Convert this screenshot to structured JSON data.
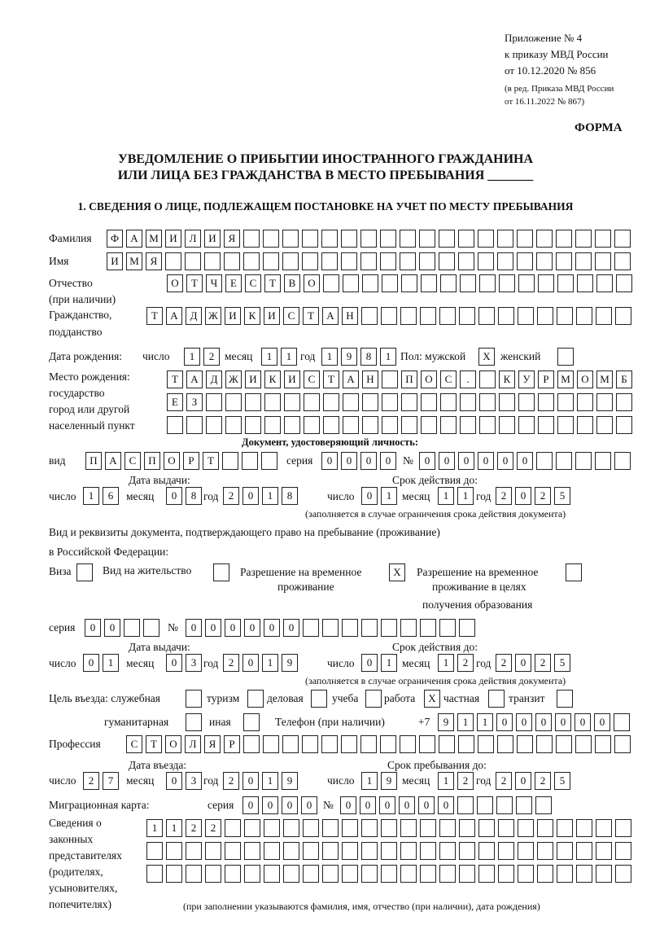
{
  "header": {
    "appendix": "Приложение № 4",
    "order": "к приказу МВД России",
    "order_date": "от 10.12.2020 № 856",
    "edition1": "(в ред. Приказа МВД России",
    "edition2": "от 16.11.2022 № 867)",
    "form_label": "ФОРМА"
  },
  "title": {
    "line1": "УВЕДОМЛЕНИЕ О ПРИБЫТИИ ИНОСТРАННОГО ГРАЖДАНИНА",
    "line2": "ИЛИ ЛИЦА БЕЗ ГРАЖДАНСТВА В МЕСТО ПРЕБЫВАНИЯ _______"
  },
  "section1": "1. СВЕДЕНИЯ О ЛИЦЕ, ПОДЛЕЖАЩЕМ ПОСТАНОВКЕ НА УЧЕТ ПО МЕСТУ ПРЕБЫВАНИЯ",
  "labels": {
    "surname": "Фамилия",
    "name": "Имя",
    "patronymic": "Отчество",
    "patronymic_note": "(при наличии)",
    "citizenship1": "Гражданство,",
    "citizenship2": "подданство",
    "birth_date": "Дата рождения:",
    "day": "число",
    "month": "месяц",
    "year": "год",
    "sex_male": "Пол: мужской",
    "sex_female": "женский",
    "birthplace1": "Место рождения:",
    "birthplace2": "государство",
    "birthplace3": "город или другой",
    "birthplace4": "населенный пункт",
    "id_doc": "Документ, удостоверяющий личность:",
    "type": "вид",
    "series": "серия",
    "number": "№",
    "issue_date": "Дата выдачи:",
    "valid_until": "Срок действия до:",
    "validity_note": "(заполняется в случае ограничения срока действия документа)",
    "stay_doc1": "Вид и реквизиты документа, подтверждающего право на пребывание (проживание)",
    "stay_doc2": "в Российской Федерации:",
    "visa": "Виза",
    "residence": "Вид на жительство",
    "trp1": "Разрешение на временное",
    "trp2": "проживание",
    "trp_edu1": "Разрешение на временное",
    "trp_edu2": "проживание в целях",
    "trp_edu3": "получения образования",
    "purpose": "Цель въезда: служебная",
    "tourism": "туризм",
    "business": "деловая",
    "study": "учеба",
    "work": "работа",
    "private": "частная",
    "transit": "транзит",
    "humanitarian": "гуманитарная",
    "other": "иная",
    "phone": "Телефон (при наличии)",
    "phone_prefix": "+7",
    "profession": "Профессия",
    "entry_date": "Дата въезда:",
    "stay_until": "Срок пребывания до:",
    "migration_card": "Миграционная карта:",
    "legal1": "Сведения о",
    "legal2": "законных",
    "legal3": "представителях",
    "legal4": "(родителях,",
    "legal5": "усыновителях,",
    "legal6": "попечителях)",
    "legal_note": "(при заполнении указываются фамилия, имя, отчество (при наличии), дата рождения)"
  },
  "values": {
    "surname": "ФАМИЛИЯ",
    "name": "ИМЯ",
    "patronymic": "ОТЧЕСТВО",
    "citizenship": "ТАДЖИКИСТАН",
    "birth": {
      "day": "12",
      "month": "11",
      "year": "1981"
    },
    "sex": {
      "male": "X",
      "female": ""
    },
    "birthplace": [
      "ТАДЖИКИСТАН ПОС. КУРМОМБ",
      "ЕЗ",
      ""
    ],
    "id_doc": {
      "type": "ПАСПОРТ",
      "series": "0000",
      "number": "000000",
      "issue": {
        "day": "16",
        "month": "08",
        "year": "2018"
      },
      "expiry": {
        "day": "01",
        "month": "11",
        "year": "2025"
      }
    },
    "stay_doc": {
      "visa": "",
      "residence": "",
      "trp": "X",
      "trp_edu": "",
      "series": "00",
      "number": "000000",
      "issue": {
        "day": "01",
        "month": "03",
        "year": "2019"
      },
      "expiry": {
        "day": "01",
        "month": "12",
        "year": "2025"
      }
    },
    "purpose": {
      "service": "",
      "tourism": "",
      "business": "",
      "study": "",
      "work": "X",
      "private": "",
      "transit": "",
      "humanitarian": "",
      "other": ""
    },
    "phone": "911000000",
    "profession": "СТОЛЯР",
    "entry": {
      "day": "27",
      "month": "03",
      "year": "2019"
    },
    "stay_until": {
      "day": "19",
      "month": "12",
      "year": "2025"
    },
    "migration_card": {
      "series": "0000",
      "number": "000000"
    },
    "legal": [
      "1122",
      "",
      ""
    ]
  }
}
